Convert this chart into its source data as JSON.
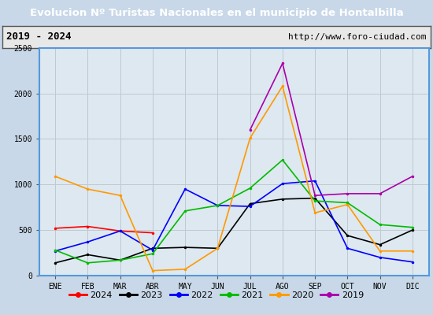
{
  "title": "Evolucion Nº Turistas Nacionales en el municipio de Hontalbilla",
  "subtitle_left": "2019 - 2024",
  "subtitle_right": "http://www.foro-ciudad.com",
  "x_labels": [
    "ENE",
    "FEB",
    "MAR",
    "ABR",
    "MAY",
    "JUN",
    "JUL",
    "AGO",
    "SEP",
    "OCT",
    "NOV",
    "DIC"
  ],
  "ylim": [
    0,
    2500
  ],
  "yticks": [
    0,
    500,
    1000,
    1500,
    2000,
    2500
  ],
  "series": {
    "2024": {
      "color": "#ff0000",
      "data": [
        520,
        540,
        490,
        470,
        null,
        null,
        null,
        null,
        null,
        null,
        null,
        null
      ]
    },
    "2023": {
      "color": "#000000",
      "data": [
        140,
        230,
        170,
        300,
        310,
        300,
        790,
        840,
        850,
        440,
        340,
        500
      ]
    },
    "2022": {
      "color": "#0000ff",
      "data": [
        270,
        370,
        490,
        280,
        950,
        770,
        760,
        1010,
        1040,
        300,
        200,
        150
      ]
    },
    "2021": {
      "color": "#00bb00",
      "data": [
        280,
        140,
        170,
        240,
        710,
        770,
        960,
        1270,
        820,
        800,
        560,
        530
      ]
    },
    "2020": {
      "color": "#ff9900",
      "data": [
        1090,
        950,
        880,
        55,
        70,
        300,
        1510,
        2080,
        690,
        780,
        270,
        270
      ]
    },
    "2019": {
      "color": "#aa00aa",
      "data": [
        null,
        null,
        null,
        null,
        null,
        null,
        1600,
        2330,
        880,
        900,
        900,
        1090
      ]
    }
  },
  "legend_order": [
    "2024",
    "2023",
    "2022",
    "2021",
    "2020",
    "2019"
  ],
  "outer_bg": "#c8d8e8",
  "plot_bg_color": "#dde8f0",
  "title_bg_color": "#5599dd",
  "subtitle_bg_color": "#e8e8e8",
  "grid_color": "#c0c8d0",
  "border_color": "#5599dd",
  "subtitle_border_color": "#555555"
}
